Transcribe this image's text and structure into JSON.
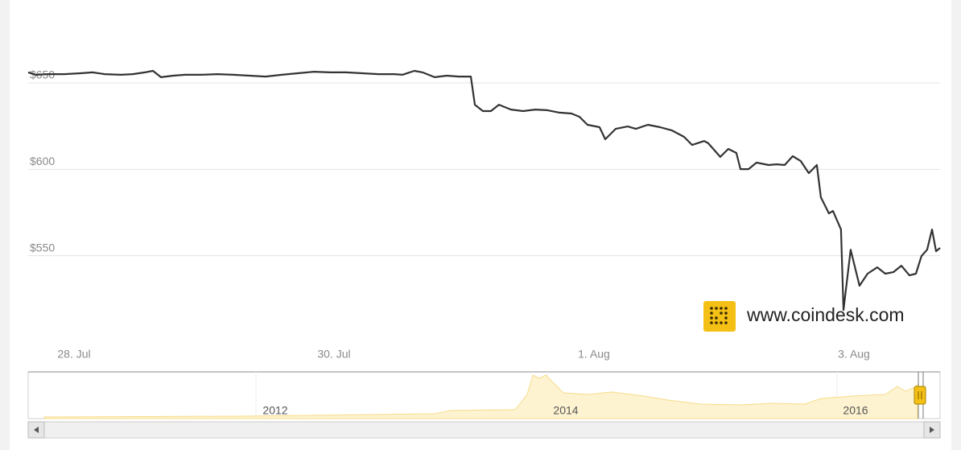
{
  "chart_data": {
    "type": "line",
    "color": "#333333",
    "grid": true,
    "watermark": "www.coindesk.com",
    "xlim": [
      -0.353,
      6.663
    ],
    "xticks": [
      {
        "value": 0,
        "label": "28. Jul"
      },
      {
        "value": 2,
        "label": "30. Jul"
      },
      {
        "value": 4,
        "label": "1. Aug"
      },
      {
        "value": 6,
        "label": "3. Aug"
      }
    ],
    "ylim": [
      500,
      698
    ],
    "yticks": [
      {
        "value": 550,
        "label": "$550"
      },
      {
        "value": 600,
        "label": "$600"
      },
      {
        "value": 650,
        "label": "$650"
      }
    ],
    "x": [
      -0.353,
      -0.291,
      -0.198,
      -0.074,
      0.05,
      0.142,
      0.235,
      0.359,
      0.452,
      0.545,
      0.607,
      0.669,
      0.762,
      0.854,
      0.978,
      1.102,
      1.226,
      1.35,
      1.474,
      1.598,
      1.721,
      1.845,
      1.969,
      2.093,
      2.217,
      2.341,
      2.464,
      2.526,
      2.619,
      2.681,
      2.774,
      2.867,
      2.96,
      3.053,
      3.084,
      3.146,
      3.207,
      3.269,
      3.362,
      3.455,
      3.548,
      3.641,
      3.734,
      3.827,
      3.889,
      3.95,
      4.043,
      4.087,
      4.167,
      4.26,
      4.322,
      4.415,
      4.508,
      4.601,
      4.693,
      4.755,
      4.848,
      4.879,
      4.972,
      5.034,
      5.096,
      5.127,
      5.189,
      5.251,
      5.344,
      5.406,
      5.467,
      5.529,
      5.591,
      5.653,
      5.715,
      5.746,
      5.808,
      5.839,
      5.901,
      5.92,
      5.975,
      6.043,
      6.105,
      6.18,
      6.241,
      6.303,
      6.365,
      6.427,
      6.477,
      6.52,
      6.563,
      6.601,
      6.632,
      6.663
    ],
    "values": [
      656.1,
      654.7,
      655.1,
      655.1,
      655.6,
      656.1,
      655.1,
      654.7,
      655.1,
      656.1,
      657,
      653.3,
      654.2,
      654.7,
      654.7,
      655.1,
      654.7,
      654.2,
      653.7,
      654.7,
      655.6,
      656.5,
      656.1,
      656.1,
      655.6,
      655.1,
      655.1,
      654.7,
      657,
      656.1,
      653.3,
      654.2,
      653.7,
      653.7,
      637.4,
      633.7,
      633.7,
      637.4,
      634.6,
      633.7,
      634.6,
      634.2,
      632.8,
      632.3,
      630.4,
      625.8,
      624.4,
      617.4,
      623.4,
      624.8,
      623.4,
      625.8,
      624.4,
      622.5,
      618.8,
      614.1,
      616.4,
      615.1,
      607.2,
      611.8,
      609.5,
      600.1,
      600.1,
      603.9,
      602.5,
      602.9,
      602.5,
      607.6,
      604.8,
      597.8,
      602.5,
      583.8,
      574.5,
      575.9,
      565.2,
      518.6,
      553.5,
      532.6,
      539.6,
      543.3,
      539.6,
      540.5,
      544.2,
      538.6,
      539.6,
      549.8,
      553.5,
      565.2,
      552.6,
      554.5
    ],
    "navigator": {
      "labels": [
        "2012",
        "2014",
        "2016"
      ]
    }
  }
}
